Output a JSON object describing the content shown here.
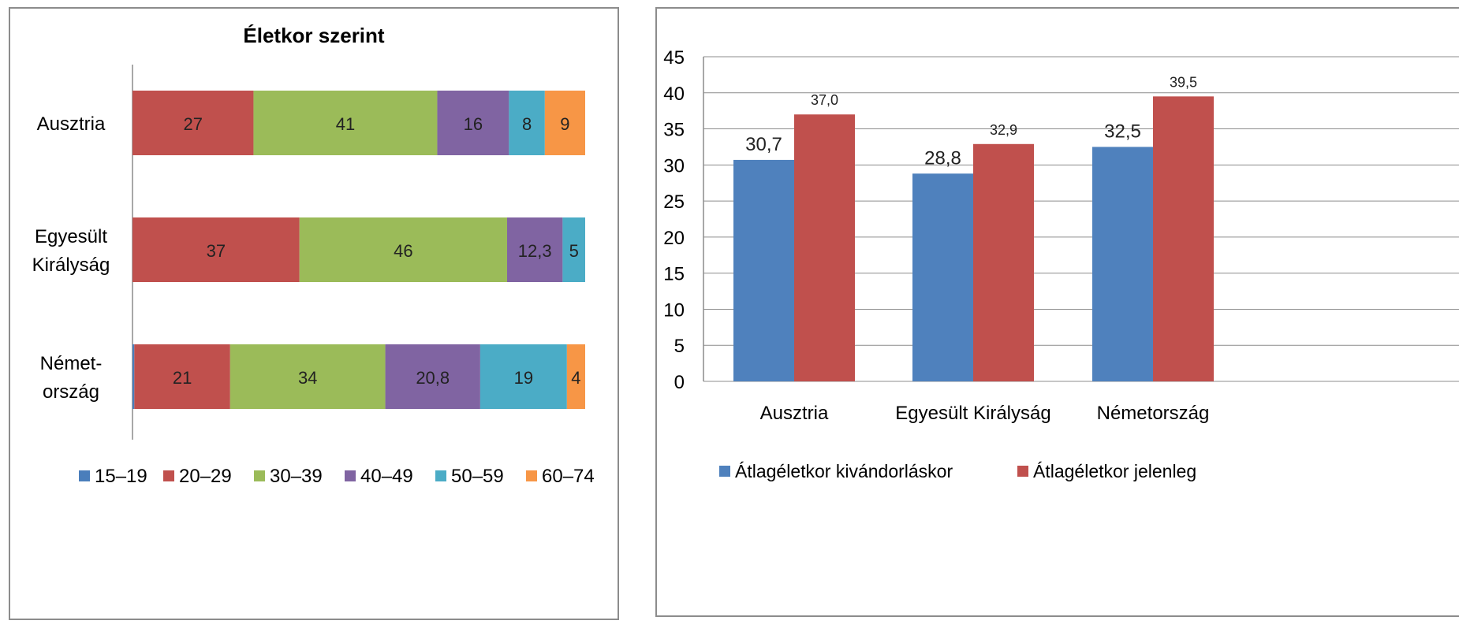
{
  "colors": {
    "15-19": "#4a7ebb",
    "20-29": "#c0504d",
    "30-39": "#9bbb59",
    "40-49": "#8064a2",
    "50-59": "#4bacc6",
    "60-74": "#f79646",
    "series_blue": "#4f81bd",
    "series_red": "#c0504d"
  },
  "chart_data": [
    {
      "type": "bar",
      "orientation": "horizontal",
      "stacked": true,
      "title": "Életkor szerint",
      "categories": [
        {
          "lines": [
            "Ausztria"
          ]
        },
        {
          "lines": [
            "Egyesült",
            "Királyság"
          ]
        },
        {
          "lines": [
            "Német-",
            "ország"
          ]
        }
      ],
      "series": [
        {
          "name": "15–19",
          "values": [
            0,
            0,
            0.4
          ],
          "labels": [
            "",
            "",
            ""
          ]
        },
        {
          "name": "20–29",
          "values": [
            27,
            37,
            21
          ],
          "labels": [
            "27",
            "37",
            "21"
          ]
        },
        {
          "name": "30–39",
          "values": [
            41,
            46,
            34
          ],
          "labels": [
            "41",
            "46",
            "34"
          ]
        },
        {
          "name": "40–49",
          "values": [
            16,
            12.3,
            20.8
          ],
          "labels": [
            "16",
            "12,3",
            "20,8"
          ]
        },
        {
          "name": "50–59",
          "values": [
            8,
            5,
            19
          ],
          "labels": [
            "8",
            "5",
            "19"
          ]
        },
        {
          "name": "60–74",
          "values": [
            9,
            0,
            4
          ],
          "labels": [
            "9",
            "",
            "4"
          ]
        }
      ],
      "legend_position": "bottom",
      "grid": false
    },
    {
      "type": "bar",
      "orientation": "vertical",
      "title": "",
      "categories": [
        "Ausztria",
        "Egyesült Királyság",
        "Németország"
      ],
      "series": [
        {
          "name": "Átlagéletkor kivándorláskor",
          "values": [
            30.7,
            28.8,
            32.5
          ],
          "labels": [
            "30,7",
            "28,8",
            "32,5"
          ]
        },
        {
          "name": "Átlagéletkor jelenleg",
          "values": [
            37.0,
            32.9,
            39.5
          ],
          "labels": [
            "37,0",
            "32,9",
            "39,5"
          ]
        }
      ],
      "yticks": [
        "0",
        "5",
        "10",
        "15",
        "20",
        "25",
        "30",
        "35",
        "40",
        "45"
      ],
      "ylim": [
        0,
        45
      ],
      "grid": true,
      "legend_position": "bottom"
    }
  ]
}
